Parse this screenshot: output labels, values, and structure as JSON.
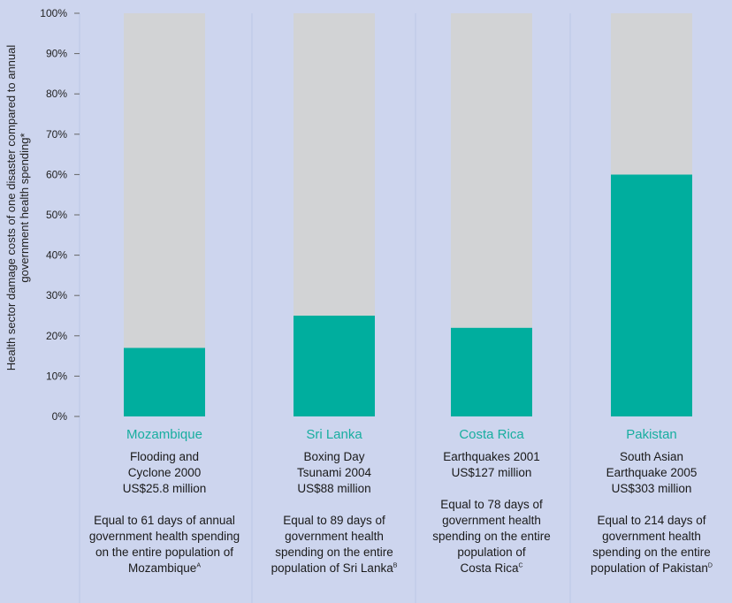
{
  "chart_data": {
    "type": "bar",
    "stacked": true,
    "ylabel": "Health sector damage costs of one disaster compared to annual government health spending*",
    "ylim": [
      0,
      100
    ],
    "yticks": [
      "0%",
      "10%",
      "20%",
      "30%",
      "40%",
      "50%",
      "60%",
      "70%",
      "80%",
      "90%",
      "100%"
    ],
    "categories": [
      "Mozambique",
      "Sri Lanka",
      "Costa Rica",
      "Pakistan"
    ],
    "values": [
      17,
      25,
      22,
      60
    ],
    "series": [
      {
        "values": [
          17,
          25,
          22,
          60
        ],
        "color": "#00ae9e"
      },
      {
        "values": [
          83,
          75,
          78,
          40
        ],
        "color": "#d2d3d5"
      }
    ],
    "grid": true
  },
  "columns": [
    {
      "country": "Mozambique",
      "event": [
        "Flooding and",
        "Cyclone 2000",
        "US$25.8 million"
      ],
      "note": [
        "Equal to 61 days of annual",
        "government health spending",
        "on the entire population of",
        "Mozambique"
      ],
      "footnote": "A"
    },
    {
      "country": "Sri Lanka",
      "event": [
        "Boxing Day",
        "Tsunami 2004",
        "US$88 million"
      ],
      "note": [
        "Equal to 89 days of",
        "government health",
        "spending on the entire",
        "population of Sri Lanka"
      ],
      "footnote": "B"
    },
    {
      "country": "Costa Rica",
      "event": [
        "Earthquakes 2001",
        "US$127 million"
      ],
      "note": [
        "Equal to 78 days of",
        "government health",
        "spending on the entire",
        "population of",
        "Costa Rica"
      ],
      "footnote": "C"
    },
    {
      "country": "Pakistan",
      "event": [
        "South Asian",
        "Earthquake 2005",
        "US$303 million"
      ],
      "note": [
        "Equal to 214 days of",
        "government health",
        "spending on the entire",
        "population of Pakistan"
      ],
      "footnote": "D"
    }
  ],
  "colors": {
    "background": "#cdd5ee",
    "accent": "#00ae9e",
    "remainder": "#d2d3d5",
    "grid": "#bcc6e6"
  }
}
